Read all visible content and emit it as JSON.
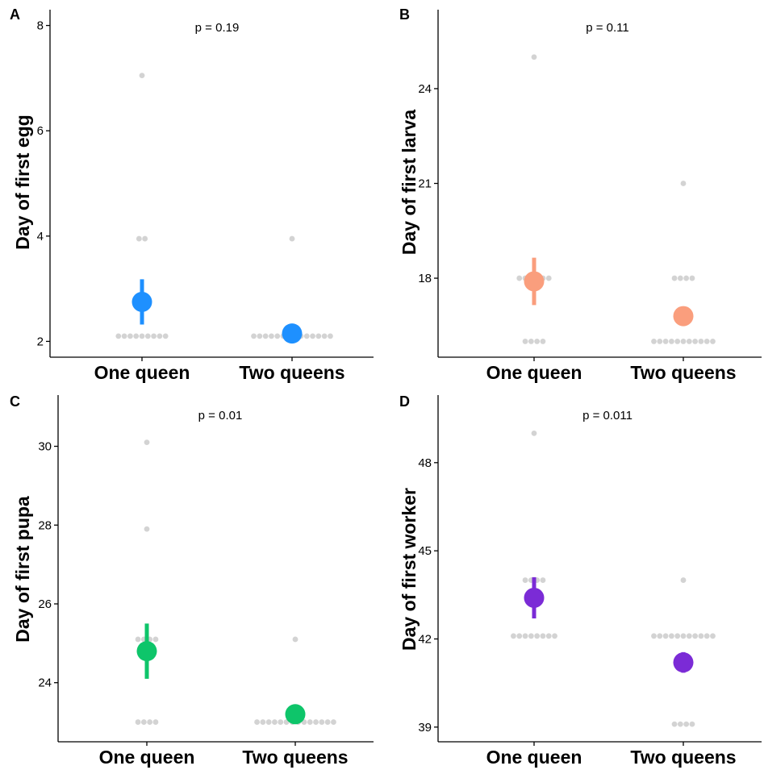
{
  "chart_data": [
    {
      "type": "scatter",
      "panel": "A",
      "annotation": "p = 0.19",
      "ylabel": "Day of first egg",
      "categories": [
        "One queen",
        "Two queens"
      ],
      "yticks": [
        2,
        4,
        6,
        8
      ],
      "ylim": [
        1.7,
        8.3
      ],
      "colors": {
        "summary": "#1e90ff",
        "raw": "#d3d3d3"
      },
      "raw_points": [
        {
          "category": "One queen",
          "y": 2.1,
          "count": 9
        },
        {
          "category": "One queen",
          "y": 3.95,
          "count": 2
        },
        {
          "category": "One queen",
          "y": 7.05,
          "count": 1
        },
        {
          "category": "Two queens",
          "y": 2.1,
          "count": 14
        },
        {
          "category": "Two queens",
          "y": 3.95,
          "count": 1
        }
      ],
      "summary": [
        {
          "category": "One queen",
          "mean": 2.75,
          "lower": 2.32,
          "upper": 3.18
        },
        {
          "category": "Two queens",
          "mean": 2.15,
          "lower": 2.15,
          "upper": 2.15
        }
      ]
    },
    {
      "type": "scatter",
      "panel": "B",
      "annotation": "p = 0.11",
      "ylabel": "Day of first larva",
      "categories": [
        "One queen",
        "Two queens"
      ],
      "yticks": [
        18,
        21,
        24
      ],
      "ylim": [
        15.5,
        26.5
      ],
      "colors": {
        "summary": "#fa9e7d",
        "raw": "#d3d3d3"
      },
      "raw_points": [
        {
          "category": "One queen",
          "y": 16,
          "count": 4
        },
        {
          "category": "One queen",
          "y": 18,
          "count": 6
        },
        {
          "category": "One queen",
          "y": 25,
          "count": 1
        },
        {
          "category": "Two queens",
          "y": 16,
          "count": 11
        },
        {
          "category": "Two queens",
          "y": 18,
          "count": 4
        },
        {
          "category": "Two queens",
          "y": 21,
          "count": 1
        }
      ],
      "summary": [
        {
          "category": "One queen",
          "mean": 17.9,
          "lower": 17.15,
          "upper": 18.65
        },
        {
          "category": "Two queens",
          "mean": 16.8,
          "lower": 16.5,
          "upper": 17.1
        }
      ]
    },
    {
      "type": "scatter",
      "panel": "C",
      "annotation": "p = 0.01",
      "ylabel": "Day of first pupa",
      "categories": [
        "One queen",
        "Two queens"
      ],
      "yticks": [
        24,
        26,
        28,
        30
      ],
      "ylim": [
        22.5,
        31.3
      ],
      "colors": {
        "summary": "#0ec56a",
        "raw": "#d3d3d3"
      },
      "raw_points": [
        {
          "category": "One queen",
          "y": 23,
          "count": 4
        },
        {
          "category": "One queen",
          "y": 25.1,
          "count": 4
        },
        {
          "category": "One queen",
          "y": 27.9,
          "count": 1
        },
        {
          "category": "One queen",
          "y": 30.1,
          "count": 1
        },
        {
          "category": "Two queens",
          "y": 23,
          "count": 14
        },
        {
          "category": "Two queens",
          "y": 25.1,
          "count": 1
        }
      ],
      "summary": [
        {
          "category": "One queen",
          "mean": 24.8,
          "lower": 24.1,
          "upper": 25.5
        },
        {
          "category": "Two queens",
          "mean": 23.2,
          "lower": 23.2,
          "upper": 23.2
        }
      ]
    },
    {
      "type": "scatter",
      "panel": "D",
      "annotation": "p = 0.011",
      "ylabel": "Day of first worker",
      "categories": [
        "One queen",
        "Two queens"
      ],
      "yticks": [
        39,
        42,
        45,
        48
      ],
      "ylim": [
        38.5,
        50.3
      ],
      "colors": {
        "summary": "#7b2bd6",
        "raw": "#d3d3d3"
      },
      "raw_points": [
        {
          "category": "One queen",
          "y": 42.1,
          "count": 8
        },
        {
          "category": "One queen",
          "y": 44,
          "count": 4
        },
        {
          "category": "One queen",
          "y": 49,
          "count": 1
        },
        {
          "category": "Two queens",
          "y": 39.1,
          "count": 4
        },
        {
          "category": "Two queens",
          "y": 42.1,
          "count": 11
        },
        {
          "category": "Two queens",
          "y": 44,
          "count": 1
        }
      ],
      "summary": [
        {
          "category": "One queen",
          "mean": 43.4,
          "lower": 42.7,
          "upper": 44.1
        },
        {
          "category": "Two queens",
          "mean": 41.2,
          "lower": 40.85,
          "upper": 41.55
        }
      ]
    }
  ]
}
